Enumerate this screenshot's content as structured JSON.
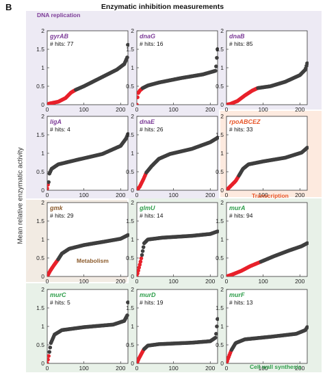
{
  "figure": {
    "panel_letter": "B",
    "title": "Enzymatic inhibition measurements",
    "ylabel": "Mean relative enzymatic activity"
  },
  "groups": [
    {
      "name": "DNA replication",
      "color": "#7d3c98",
      "bg": "#edeaf4"
    },
    {
      "name": "Transcription",
      "color": "#e8572a",
      "bg": "#fdeadf"
    },
    {
      "name": "Metabolism",
      "color": "#8b5a2b",
      "bg": "#f2ebe3"
    },
    {
      "name": "Cell wall synthesis",
      "color": "#2e9e4a",
      "bg": "#e8f1e8"
    }
  ],
  "colors": {
    "hit": "#e8202a",
    "nonhit": "#3f3f3f"
  },
  "chart_data": [
    {
      "type": "scatter",
      "gene": "gyrAB",
      "hits_label": "# hits: 77",
      "hits": 77,
      "group": "DNA replication",
      "xlim": [
        0,
        220
      ],
      "ylim": [
        0,
        2
      ],
      "xticks": [
        0,
        100,
        200
      ],
      "yticks": [
        0,
        0.5,
        1,
        1.5,
        2
      ],
      "curve": [
        [
          0,
          0.0
        ],
        [
          5,
          0.03
        ],
        [
          30,
          0.08
        ],
        [
          50,
          0.18
        ],
        [
          65,
          0.33
        ],
        [
          77,
          0.4
        ],
        [
          100,
          0.5
        ],
        [
          150,
          0.75
        ],
        [
          190,
          0.95
        ],
        [
          210,
          1.1
        ],
        [
          218,
          1.28
        ],
        [
          220,
          1.62
        ]
      ]
    },
    {
      "type": "scatter",
      "gene": "dnaG",
      "hits_label": "# hits: 16",
      "hits": 16,
      "group": "DNA replication",
      "xlim": [
        0,
        220
      ],
      "ylim": [
        0,
        2
      ],
      "xticks": [
        0,
        100,
        200
      ],
      "yticks": [
        0,
        0.5,
        1,
        1.5,
        2
      ],
      "curve": [
        [
          0,
          0.0
        ],
        [
          3,
          0.3
        ],
        [
          8,
          0.38
        ],
        [
          16,
          0.45
        ],
        [
          30,
          0.52
        ],
        [
          60,
          0.6
        ],
        [
          120,
          0.72
        ],
        [
          180,
          0.82
        ],
        [
          215,
          0.92
        ],
        [
          220,
          1.5
        ]
      ]
    },
    {
      "type": "scatter",
      "gene": "dnaB",
      "hits_label": "# hits: 85",
      "hits": 85,
      "group": "DNA replication",
      "xlim": [
        0,
        220
      ],
      "ylim": [
        0,
        2
      ],
      "xticks": [
        0,
        100,
        200
      ],
      "yticks": [
        0,
        0.5,
        1,
        1.5,
        2
      ],
      "curve": [
        [
          0,
          0.0
        ],
        [
          10,
          0.02
        ],
        [
          30,
          0.1
        ],
        [
          50,
          0.25
        ],
        [
          70,
          0.38
        ],
        [
          85,
          0.45
        ],
        [
          120,
          0.5
        ],
        [
          160,
          0.62
        ],
        [
          200,
          0.8
        ],
        [
          215,
          0.95
        ],
        [
          220,
          1.12
        ]
      ]
    },
    {
      "type": "scatter",
      "gene": "ligA",
      "hits_label": "# hits: 4",
      "hits": 4,
      "group": "DNA replication",
      "xlim": [
        0,
        220
      ],
      "ylim": [
        0,
        2
      ],
      "xticks": [
        0,
        100,
        200
      ],
      "yticks": [
        0,
        0.5,
        1,
        1.5,
        2
      ],
      "curve": [
        [
          0,
          0.05
        ],
        [
          2,
          0.15
        ],
        [
          4,
          0.22
        ],
        [
          6,
          0.45
        ],
        [
          12,
          0.58
        ],
        [
          30,
          0.7
        ],
        [
          80,
          0.82
        ],
        [
          150,
          0.98
        ],
        [
          200,
          1.2
        ],
        [
          215,
          1.4
        ],
        [
          220,
          1.52
        ]
      ]
    },
    {
      "type": "scatter",
      "gene": "dnaE",
      "hits_label": "# hits: 26",
      "hits": 26,
      "group": "DNA replication",
      "xlim": [
        0,
        220
      ],
      "ylim": [
        0,
        2
      ],
      "xticks": [
        0,
        100,
        200
      ],
      "yticks": [
        0,
        0.5,
        1,
        1.5,
        2
      ],
      "curve": [
        [
          0,
          0.0
        ],
        [
          8,
          0.1
        ],
        [
          18,
          0.3
        ],
        [
          26,
          0.48
        ],
        [
          40,
          0.65
        ],
        [
          60,
          0.85
        ],
        [
          90,
          0.98
        ],
        [
          150,
          1.12
        ],
        [
          200,
          1.3
        ],
        [
          220,
          1.42
        ]
      ]
    },
    {
      "type": "scatter",
      "gene": "rpoABCEZ",
      "hits_label": "# hits: 33",
      "hits": 33,
      "group": "Transcription",
      "xlim": [
        0,
        220
      ],
      "ylim": [
        0,
        2
      ],
      "xticks": [
        0,
        100,
        200
      ],
      "yticks": [
        0,
        0.5,
        1,
        1.5,
        2
      ],
      "curve": [
        [
          0,
          0.0
        ],
        [
          10,
          0.1
        ],
        [
          25,
          0.25
        ],
        [
          33,
          0.38
        ],
        [
          45,
          0.58
        ],
        [
          60,
          0.7
        ],
        [
          100,
          0.78
        ],
        [
          160,
          0.88
        ],
        [
          205,
          1.02
        ],
        [
          220,
          1.15
        ]
      ]
    },
    {
      "type": "scatter",
      "gene": "gmk",
      "hits_label": "# hits: 29",
      "hits": 29,
      "group": "Metabolism",
      "xlim": [
        0,
        220
      ],
      "ylim": [
        0,
        2
      ],
      "xticks": [
        0,
        100,
        200
      ],
      "yticks": [
        0,
        0.5,
        1,
        1.5,
        2
      ],
      "curve": [
        [
          0,
          0.0
        ],
        [
          8,
          0.15
        ],
        [
          18,
          0.3
        ],
        [
          29,
          0.45
        ],
        [
          40,
          0.62
        ],
        [
          60,
          0.75
        ],
        [
          100,
          0.85
        ],
        [
          160,
          0.95
        ],
        [
          200,
          1.02
        ],
        [
          220,
          1.12
        ]
      ]
    },
    {
      "type": "scatter",
      "gene": "glmU",
      "hits_label": "# hits: 14",
      "hits": 14,
      "group": "Cell wall synthesis",
      "xlim": [
        0,
        220
      ],
      "ylim": [
        0,
        2
      ],
      "xticks": [
        0,
        100,
        200
      ],
      "yticks": [
        0,
        0.5,
        1,
        1.5,
        2
      ],
      "curve": [
        [
          0,
          0.0
        ],
        [
          5,
          0.2
        ],
        [
          10,
          0.4
        ],
        [
          14,
          0.58
        ],
        [
          20,
          0.9
        ],
        [
          30,
          1.0
        ],
        [
          70,
          1.05
        ],
        [
          150,
          1.1
        ],
        [
          200,
          1.15
        ],
        [
          220,
          1.22
        ]
      ]
    },
    {
      "type": "scatter",
      "gene": "murA",
      "hits_label": "# hits: 94",
      "hits": 94,
      "group": "Cell wall synthesis",
      "xlim": [
        0,
        220
      ],
      "ylim": [
        0,
        2
      ],
      "xticks": [
        0,
        100,
        200
      ],
      "yticks": [
        0,
        0.5,
        1,
        1.5,
        2
      ],
      "curve": [
        [
          0,
          0.0
        ],
        [
          15,
          0.05
        ],
        [
          40,
          0.15
        ],
        [
          65,
          0.28
        ],
        [
          94,
          0.4
        ],
        [
          130,
          0.55
        ],
        [
          170,
          0.7
        ],
        [
          205,
          0.82
        ],
        [
          220,
          0.9
        ]
      ]
    },
    {
      "type": "scatter",
      "gene": "murC",
      "hits_label": "# hits: 5",
      "hits": 5,
      "group": "Cell wall synthesis",
      "xlim": [
        0,
        220
      ],
      "ylim": [
        0,
        2
      ],
      "xticks": [
        0,
        100,
        200
      ],
      "yticks": [
        0,
        0.5,
        1,
        1.5,
        2
      ],
      "curve": [
        [
          0,
          0.0
        ],
        [
          3,
          0.15
        ],
        [
          5,
          0.25
        ],
        [
          10,
          0.55
        ],
        [
          20,
          0.78
        ],
        [
          40,
          0.9
        ],
        [
          100,
          0.98
        ],
        [
          180,
          1.05
        ],
        [
          210,
          1.15
        ],
        [
          218,
          1.3
        ],
        [
          220,
          1.65
        ]
      ]
    },
    {
      "type": "scatter",
      "gene": "murD",
      "hits_label": "# hits: 19",
      "hits": 19,
      "group": "Cell wall synthesis",
      "xlim": [
        0,
        220
      ],
      "ylim": [
        0,
        2
      ],
      "xticks": [
        0,
        100,
        200
      ],
      "yticks": [
        0,
        0.5,
        1,
        1.5,
        2
      ],
      "curve": [
        [
          0,
          0.0
        ],
        [
          5,
          0.12
        ],
        [
          12,
          0.25
        ],
        [
          19,
          0.38
        ],
        [
          30,
          0.48
        ],
        [
          60,
          0.52
        ],
        [
          150,
          0.56
        ],
        [
          200,
          0.6
        ],
        [
          215,
          0.7
        ],
        [
          220,
          1.2
        ]
      ]
    },
    {
      "type": "scatter",
      "gene": "murF",
      "hits_label": "# hits: 13",
      "hits": 13,
      "group": "Cell wall synthesis",
      "xlim": [
        0,
        220
      ],
      "ylim": [
        0,
        2
      ],
      "xticks": [
        0,
        100,
        200
      ],
      "yticks": [
        0,
        0.5,
        1,
        1.5,
        2
      ],
      "curve": [
        [
          0,
          0.0
        ],
        [
          4,
          0.12
        ],
        [
          9,
          0.25
        ],
        [
          13,
          0.35
        ],
        [
          25,
          0.55
        ],
        [
          50,
          0.65
        ],
        [
          120,
          0.72
        ],
        [
          190,
          0.8
        ],
        [
          215,
          0.9
        ],
        [
          220,
          0.98
        ]
      ]
    }
  ]
}
